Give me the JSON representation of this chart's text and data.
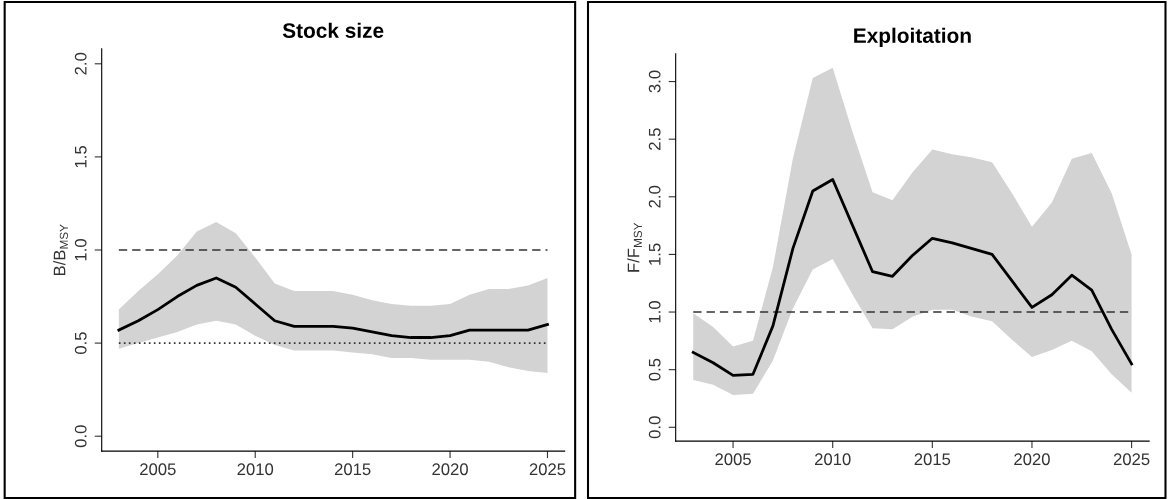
{
  "chart_data": [
    {
      "type": "line",
      "title": "Stock size",
      "ylabel": "B/B$_{MSY}$",
      "x": [
        2003,
        2004,
        2005,
        2006,
        2007,
        2008,
        2009,
        2010,
        2011,
        2012,
        2013,
        2014,
        2015,
        2016,
        2017,
        2018,
        2019,
        2020,
        2021,
        2022,
        2023,
        2024,
        2025
      ],
      "series": [
        {
          "color": "#000000",
          "values": [
            0.57,
            0.62,
            0.68,
            0.75,
            0.81,
            0.85,
            0.8,
            0.71,
            0.62,
            0.59,
            0.59,
            0.59,
            0.58,
            0.56,
            0.54,
            0.53,
            0.53,
            0.54,
            0.57,
            0.57,
            0.57,
            0.57,
            0.6
          ],
          "lower": [
            0.47,
            0.5,
            0.53,
            0.56,
            0.6,
            0.62,
            0.6,
            0.54,
            0.49,
            0.46,
            0.46,
            0.46,
            0.45,
            0.44,
            0.42,
            0.42,
            0.41,
            0.41,
            0.41,
            0.4,
            0.37,
            0.35,
            0.34
          ],
          "upper": [
            0.68,
            0.78,
            0.87,
            0.97,
            1.1,
            1.15,
            1.09,
            0.96,
            0.82,
            0.78,
            0.78,
            0.78,
            0.76,
            0.73,
            0.71,
            0.7,
            0.7,
            0.71,
            0.76,
            0.79,
            0.79,
            0.81,
            0.85
          ]
        }
      ],
      "xlim": [
        2002.12,
        2025.88
      ],
      "xticks": [
        2005,
        2010,
        2015,
        2020,
        2025
      ],
      "ylim": [
        -0.08,
        2.08
      ],
      "yticks": [
        {
          "value": 0,
          "label": "0.0"
        },
        0.5,
        {
          "value": 1,
          "label": "1.0"
        },
        1.5,
        {
          "value": 2,
          "label": "2.0"
        }
      ],
      "ref_lines": [
        {
          "axis": "y",
          "value": 1.0,
          "line_style": "dashed",
          "color": "#333333"
        },
        {
          "axis": "y",
          "value": 0.5,
          "line_style": "dotted",
          "color": "#333333"
        }
      ],
      "grid": false,
      "legend": false,
      "marker": "none",
      "line_style": "solid"
    },
    {
      "type": "line",
      "title": "Exploitation",
      "ylabel": "F/F$_{MSY}$",
      "x": [
        2003,
        2004,
        2005,
        2006,
        2007,
        2008,
        2009,
        2010,
        2011,
        2012,
        2013,
        2014,
        2015,
        2016,
        2017,
        2018,
        2019,
        2020,
        2021,
        2022,
        2023,
        2024,
        2025
      ],
      "series": [
        {
          "color": "#000000",
          "values": [
            0.65,
            0.56,
            0.45,
            0.46,
            0.88,
            1.55,
            2.05,
            2.15,
            1.75,
            1.35,
            1.31,
            1.49,
            1.64,
            1.6,
            1.55,
            1.5,
            1.27,
            1.04,
            1.15,
            1.32,
            1.19,
            0.85,
            0.55
          ],
          "lower": [
            0.41,
            0.37,
            0.28,
            0.29,
            0.58,
            1.03,
            1.37,
            1.46,
            1.15,
            0.86,
            0.85,
            0.96,
            1.02,
            1.02,
            0.96,
            0.92,
            0.76,
            0.61,
            0.67,
            0.75,
            0.66,
            0.46,
            0.3
          ],
          "upper": [
            0.99,
            0.87,
            0.7,
            0.75,
            1.39,
            2.33,
            3.03,
            3.12,
            2.56,
            2.04,
            1.97,
            2.21,
            2.41,
            2.37,
            2.34,
            2.3,
            2.03,
            1.74,
            1.95,
            2.33,
            2.38,
            2.03,
            1.5
          ]
        }
      ],
      "xlim": [
        2002.12,
        2025.88
      ],
      "xticks": [
        2005,
        2010,
        2015,
        2020,
        2025
      ],
      "ylim": [
        -0.12,
        3.24
      ],
      "yticks": [
        {
          "value": 0,
          "label": "0.0"
        },
        0.5,
        {
          "value": 1,
          "label": "1.0"
        },
        1.5,
        {
          "value": 2,
          "label": "2.0"
        },
        2.5,
        {
          "value": 3,
          "label": "3.0"
        }
      ],
      "ref_lines": [
        {
          "axis": "y",
          "value": 1.0,
          "line_style": "dashed",
          "color": "#333333"
        }
      ],
      "grid": false,
      "legend": false,
      "marker": "none",
      "line_style": "solid"
    }
  ]
}
